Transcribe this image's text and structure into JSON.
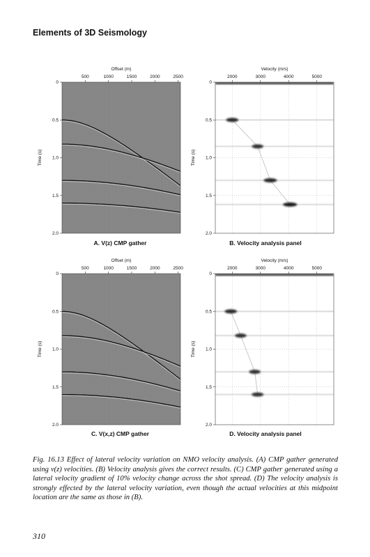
{
  "running_head": "Elements of 3D Seismology",
  "page_number": "310",
  "figure_caption": "Fig. 16.13 Effect of lateral velocity variation on NMO velocity analysis. (A) CMP gather generated using v(z) velocities. (B) Velocity analysis gives the correct results. (C) CMP gather generated using a lateral velocity gradient of 10% velocity change across the shot spread. (D) The velocity analysis is strongly effected by the lateral velocity variation, even though the actual velocities at this midpoint location are the same as those in (B).",
  "chart_data": [
    {
      "type": "heatmap",
      "panel": "A",
      "caption": "A. V(z) CMP gather",
      "xlabel": "Offset (m)",
      "ylabel": "Time (s)",
      "x_ticks": [
        "500",
        "1000",
        "1500",
        "2000",
        "2500"
      ],
      "x_tick_values": [
        500,
        1000,
        1500,
        2000,
        2500
      ],
      "y_ticks": [
        "0",
        "0.5",
        "1.0",
        "1.5",
        "2.0"
      ],
      "y_tick_values": [
        0,
        0.5,
        1.0,
        1.5,
        2.0
      ],
      "xlim": [
        0,
        2550
      ],
      "ylim": [
        0,
        2.0
      ],
      "background": "#8a8a8a",
      "events": [
        {
          "t0": 0.5,
          "v": 2000
        },
        {
          "t0": 0.82,
          "v": 3000
        },
        {
          "t0": 1.3,
          "v": 3500
        },
        {
          "t0": 1.6,
          "v": 4000
        }
      ]
    },
    {
      "type": "heatmap",
      "panel": "B",
      "caption": "B. Velocity analysis panel",
      "xlabel": "Velocity (m/s)",
      "ylabel": "Time (s)",
      "x_ticks": [
        "2000",
        "3000",
        "4000",
        "5000"
      ],
      "x_tick_values": [
        2000,
        3000,
        4000,
        5000
      ],
      "y_ticks": [
        "0",
        "0.5",
        "1.0",
        "1.5",
        "2.0"
      ],
      "y_tick_values": [
        0,
        0.5,
        1.0,
        1.5,
        2.0
      ],
      "xlim": [
        1400,
        5600
      ],
      "ylim": [
        0,
        2.0
      ],
      "grid": true,
      "background": "#ffffff",
      "peaks": [
        {
          "t": 0.5,
          "v": 2000,
          "strength": 0.8
        },
        {
          "t": 0.85,
          "v": 2900,
          "strength": 0.7
        },
        {
          "t": 1.3,
          "v": 3350,
          "strength": 0.9
        },
        {
          "t": 1.62,
          "v": 4050,
          "strength": 1.0
        }
      ]
    },
    {
      "type": "heatmap",
      "panel": "C",
      "caption": "C. V(x,z) CMP gather",
      "xlabel": "Offset (m)",
      "ylabel": "Time (s)",
      "x_ticks": [
        "500",
        "1000",
        "1500",
        "2000",
        "2500"
      ],
      "x_tick_values": [
        500,
        1000,
        1500,
        2000,
        2500
      ],
      "y_ticks": [
        "0",
        "0.5",
        "1.0",
        "1.5",
        "2.0"
      ],
      "y_tick_values": [
        0,
        0.5,
        1.0,
        1.5,
        2.0
      ],
      "xlim": [
        0,
        2550
      ],
      "ylim": [
        0,
        2.0
      ],
      "background": "#8a8a8a",
      "events": [
        {
          "t0": 0.5,
          "v": 1950
        },
        {
          "t0": 0.82,
          "v": 2800
        },
        {
          "t0": 1.3,
          "v": 3000
        },
        {
          "t0": 1.6,
          "v": 3400
        }
      ]
    },
    {
      "type": "heatmap",
      "panel": "D",
      "caption": "D. Velocity analysis panel",
      "xlabel": "Velocity (m/s)",
      "ylabel": "Time (s)",
      "x_ticks": [
        "2000",
        "3000",
        "4000",
        "5000"
      ],
      "x_tick_values": [
        2000,
        3000,
        4000,
        5000
      ],
      "y_ticks": [
        "0",
        "0.5",
        "1.0",
        "1.5",
        "2.0"
      ],
      "y_tick_values": [
        0,
        0.5,
        1.0,
        1.5,
        2.0
      ],
      "xlim": [
        1400,
        5600
      ],
      "ylim": [
        0,
        2.0
      ],
      "grid": true,
      "background": "#ffffff",
      "peaks": [
        {
          "t": 0.5,
          "v": 1950,
          "strength": 0.8
        },
        {
          "t": 0.82,
          "v": 2300,
          "strength": 0.7
        },
        {
          "t": 1.3,
          "v": 2800,
          "strength": 0.7
        },
        {
          "t": 1.6,
          "v": 2900,
          "strength": 0.75
        }
      ]
    }
  ]
}
